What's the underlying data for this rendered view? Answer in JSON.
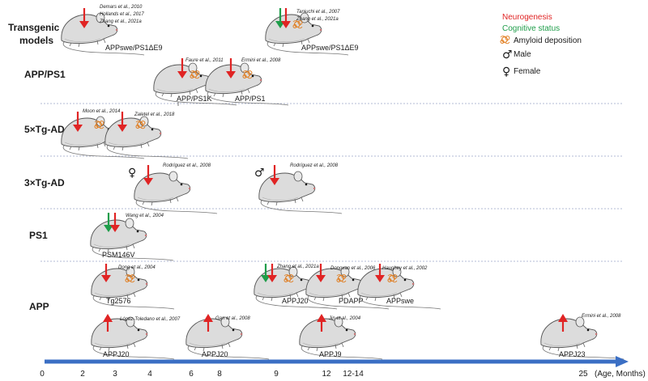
{
  "colors": {
    "neurogenesis": "#e02424",
    "cognitive": "#1f9d4a",
    "amyloid": "#e07a1a",
    "axis": "#3b6fc4",
    "divider": "#9aa5c8"
  },
  "rows": {
    "transgenic": "Transgenic\nmodels",
    "app_ps1": "APP/PS1",
    "five_x": "5×Tg-AD",
    "three_x": "3×Tg-AD",
    "ps1": "PS1",
    "app": "APP"
  },
  "legend": {
    "neurogenesis": "Neurogenesis",
    "cognitive": "Cognitive status",
    "amyloid": "Amyloid deposition",
    "male": "Male",
    "female": "Female"
  },
  "axis": {
    "ticks": [
      "0",
      "2",
      "3",
      "4",
      "6",
      "8",
      "9",
      "12",
      "12-14",
      "25"
    ],
    "unit": "(Age, Months)"
  },
  "models": {
    "appswe_ps1de9_a": "APPswe/PS1ΔE9",
    "appswe_ps1de9_b": "APPswe/PS1ΔE9",
    "app_ps1k": "APP/PS1K",
    "app_ps1": "APP/PS1",
    "psm146v": "PSM146V",
    "tg2576": "Tg2576",
    "appj20_a": "APPJ20",
    "pdapp": "PDAPP",
    "appswe": "APPswe",
    "appj20_b": "APPJ20",
    "appj20_c": "APPJ20",
    "appj9": "APPJ9",
    "appj23": "APPJ23"
  },
  "citations": {
    "demars": "Demars et al., 2010",
    "hollands": "Hollands et al., 2017",
    "zhang1": "Zhang et al., 2021a",
    "taniuchi": "Taniuchi et al., 2007",
    "zhang2": "Zhang et al., 2021a",
    "faure": "Faure et al., 2011",
    "ermini1": "Ermini et al., 2008",
    "moon": "Moon et al., 2014",
    "zaletel": "Zaletel et al., 2018",
    "rodriguez1": "Rodríguez et al., 2008",
    "rodriguez2": "Rodríguez et al., 2008",
    "wang": "Wang et al., 2004",
    "dong": "Dong et al., 2004",
    "zhang3": "Zhang et al., 2021a",
    "donovan": "Donovan et al., 2006",
    "haughey": "Haughey et al., 2002",
    "lopez": "López-Toledano et al., 2007",
    "gan": "Gan et al., 2008",
    "jin": "Jin et al., 2004",
    "ermini2": "Ermini et al., 2008"
  }
}
